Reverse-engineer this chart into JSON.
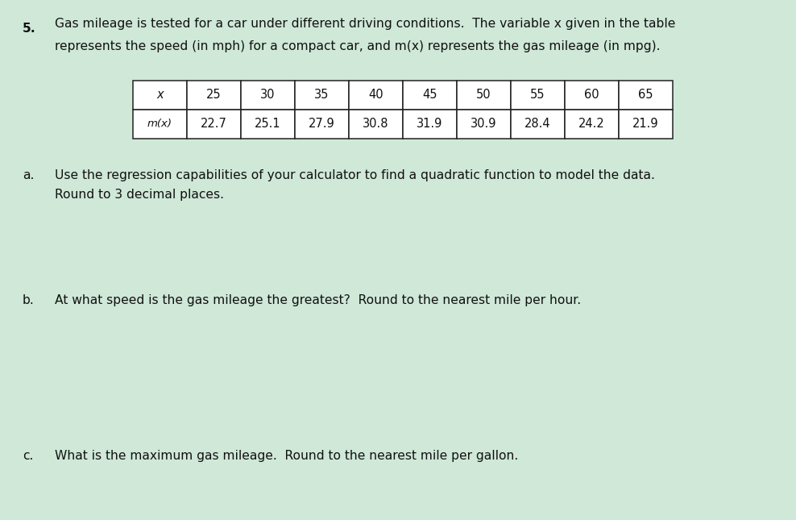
{
  "problem_number": "5.",
  "line1": "Gas mileage is tested for a car under different driving conditions.  The variable x given in the table",
  "line2": "represents the speed (in mph) for a compact car, and m(x) represents the gas mileage (in mpg).",
  "table_x_label": "x",
  "table_mx_label": "m(x)",
  "x_values": [
    25,
    30,
    35,
    40,
    45,
    50,
    55,
    60,
    65
  ],
  "mx_values": [
    22.7,
    25.1,
    27.9,
    30.8,
    31.9,
    30.9,
    28.4,
    24.2,
    21.9
  ],
  "part_a_label": "a.",
  "part_a_text": "Use the regression capabilities of your calculator to find a quadratic function to model the data.",
  "part_a_text2": "Round to 3 decimal places.",
  "part_b_label": "b.",
  "part_b_text": "At what speed is the gas mileage the greatest?  Round to the nearest mile per hour.",
  "part_c_label": "c.",
  "part_c_text": "What is the maximum gas mileage.  Round to the nearest mile per gallon.",
  "background_color": "#cfe8d8",
  "text_color": "#111111",
  "table_border_color": "#222222",
  "font_size_main": 11.2,
  "font_size_table": 10.5,
  "fig_width": 9.88,
  "fig_height": 6.45,
  "dpi": 100
}
